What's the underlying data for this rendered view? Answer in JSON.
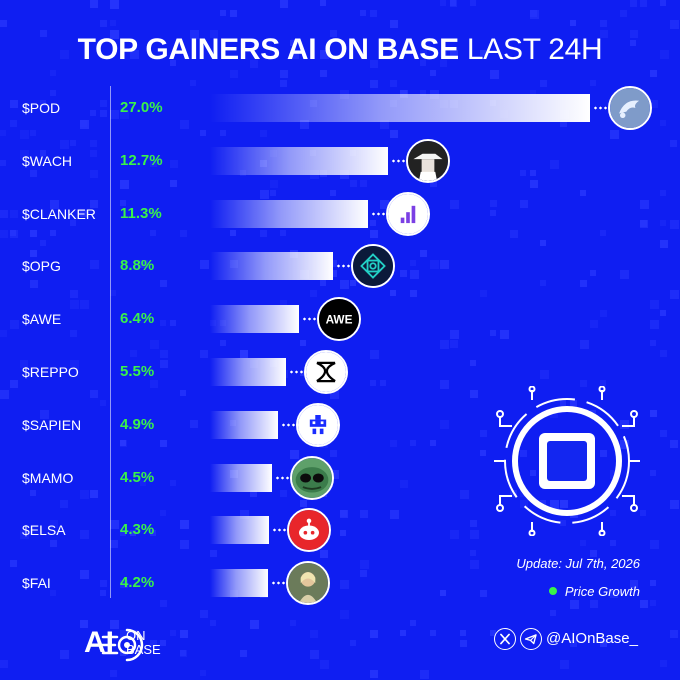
{
  "title": {
    "bold": "TOP GAINERS AI ON BASE",
    "light": "LAST 24H"
  },
  "chart_data": {
    "type": "bar",
    "orientation": "horizontal",
    "title": "TOP GAINERS AI ON BASE LAST 24H",
    "categories": [
      "$POD",
      "$WACH",
      "$CLANKER",
      "$OPG",
      "$AWE",
      "$REPPO",
      "$SAPIEN",
      "$MAMO",
      "$ELSA",
      "$FAI"
    ],
    "values": [
      27.0,
      12.7,
      11.3,
      8.8,
      6.4,
      5.5,
      4.9,
      4.5,
      4.3,
      4.2
    ],
    "value_labels": [
      "27.0%",
      "12.7%",
      "11.3%",
      "8.8%",
      "6.4%",
      "5.5%",
      "4.9%",
      "4.5%",
      "4.3%",
      "4.2%"
    ],
    "series": [
      {
        "name": "Price Growth",
        "values": [
          27.0,
          12.7,
          11.3,
          8.8,
          6.4,
          5.5,
          4.9,
          4.5,
          4.3,
          4.2
        ]
      }
    ],
    "bar_color": "#ffffff",
    "value_label_color": "#39f24a",
    "legend_position": "bottom-right",
    "grid": false
  },
  "rows": [
    {
      "ticker": "$POD",
      "pct": "27.0%",
      "icon": "dolphin-icon"
    },
    {
      "ticker": "$WACH",
      "pct": "12.7%",
      "icon": "hat-figure-icon"
    },
    {
      "ticker": "$CLANKER",
      "pct": "11.3%",
      "icon": "signal-bars-icon"
    },
    {
      "ticker": "$OPG",
      "pct": "8.8%",
      "icon": "lattice-icon"
    },
    {
      "ticker": "$AWE",
      "pct": "6.4%",
      "icon": "awe-wordmark-icon"
    },
    {
      "ticker": "$REPPO",
      "pct": "5.5%",
      "icon": "knot-icon"
    },
    {
      "ticker": "$SAPIEN",
      "pct": "4.9%",
      "icon": "pixel-robot-icon"
    },
    {
      "ticker": "$MAMO",
      "pct": "4.5%",
      "icon": "alien-icon"
    },
    {
      "ticker": "$ELSA",
      "pct": "4.3%",
      "icon": "robot-head-icon"
    },
    {
      "ticker": "$FAI",
      "pct": "4.2%",
      "icon": "portrait-icon"
    }
  ],
  "update": "Update: Jul 7th, 2026",
  "legend": {
    "label": "Price Growth",
    "color": "#39f24a"
  },
  "footer": {
    "brand_ai": "AI",
    "brand_onbase": "ON BASE",
    "handle": "@AIOnBase_",
    "social_icons": [
      "x-icon",
      "telegram-icon"
    ]
  },
  "colors": {
    "background": "#0f1ef2",
    "accent": "#39f24a",
    "bar": "#ffffff"
  }
}
